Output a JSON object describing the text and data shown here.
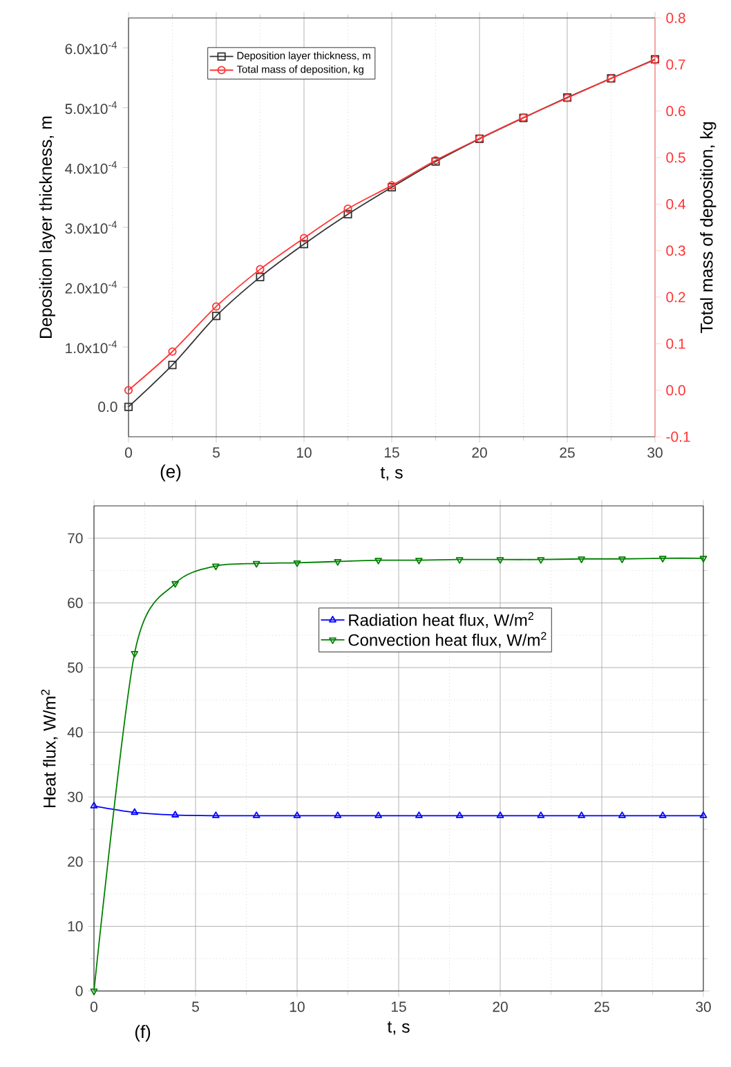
{
  "chart_data": [
    {
      "type": "line",
      "xlabel": "t, s",
      "ylabel": "Deposition layer thickness, m",
      "y2label": "Total mass of deposition, kg",
      "annotations": [
        "(e)"
      ],
      "x": [
        0,
        2.5,
        5,
        7.5,
        10,
        12.5,
        15,
        17.5,
        20,
        22.5,
        25,
        27.5,
        30
      ],
      "xlim": [
        0,
        30
      ],
      "xticks": [
        0,
        5,
        10,
        15,
        20,
        25,
        30
      ],
      "ylim": [
        -5e-05,
        0.00065
      ],
      "yticks": [
        {
          "value": 0,
          "label": "0.0"
        },
        {
          "value": 0.0001,
          "label": "1.0x10$^{-4}$"
        },
        {
          "value": 0.0002,
          "label": "2.0x10$^{-4}$"
        },
        {
          "value": 0.0003,
          "label": "3.0x10$^{-4}$"
        },
        {
          "value": 0.0004,
          "label": "4.0x10$^{-4}$"
        },
        {
          "value": 0.0005,
          "label": "5.0x10$^{-4}$"
        },
        {
          "value": 0.0006,
          "label": "6.0x10$^{-4}$"
        }
      ],
      "y2lim": [
        -0.1,
        0.8
      ],
      "y2ticks": [
        -0.1,
        {
          "value": 0,
          "label": "0.0"
        },
        0.1,
        0.2,
        0.3,
        0.4,
        0.5,
        0.6,
        0.7,
        0.8
      ],
      "grid": "x",
      "legend": "top left",
      "series": [
        {
          "name": "Deposition layer thickness, m",
          "color": "#333333",
          "marker": "square",
          "values": [
            0,
            7e-05,
            0.000152,
            0.000217,
            0.000272,
            0.000322,
            0.000367,
            0.00041,
            0.000448,
            0.000483,
            0.000517,
            0.000549,
            0.000581
          ]
        },
        {
          "name": "Total mass of deposition, kg",
          "color": "#ff3333",
          "marker": "circle",
          "axis": "y2",
          "values": [
            0.0,
            0.083,
            0.18,
            0.26,
            0.327,
            0.39,
            0.44,
            0.494,
            0.541,
            0.586,
            0.628,
            0.67,
            0.71
          ]
        }
      ]
    },
    {
      "type": "line",
      "xlabel": "t, s",
      "ylabel": "Heat flux, W/m$^{2}$",
      "annotations": [
        "(f)"
      ],
      "x": [
        0,
        2,
        4,
        6,
        8,
        10,
        12,
        14,
        16,
        18,
        20,
        22,
        24,
        26,
        28,
        30
      ],
      "xlim": [
        0,
        30
      ],
      "xticks": [
        0,
        5,
        10,
        15,
        20,
        25,
        30
      ],
      "ylim": [
        0,
        75
      ],
      "yticks": [
        0,
        10,
        20,
        30,
        40,
        50,
        60,
        70
      ],
      "grid": true,
      "legend": "top",
      "series": [
        {
          "name": "Radiation heat flux, W/m$^{2}$",
          "color": "#0000ff",
          "marker": "triangle",
          "values": [
            28.6,
            27.6,
            27.2,
            27.1,
            27.1,
            27.1,
            27.1,
            27.1,
            27.1,
            27.1,
            27.1,
            27.1,
            27.1,
            27.1,
            27.1,
            27.1
          ]
        },
        {
          "name": "Convection heat flux, W/m$^{2}$",
          "color": "#008000",
          "marker": "triangle-down",
          "values": [
            0,
            52.2,
            63.0,
            65.7,
            66.1,
            66.2,
            66.4,
            66.6,
            66.6,
            66.7,
            66.7,
            66.7,
            66.8,
            66.8,
            66.9,
            66.9
          ]
        }
      ]
    }
  ]
}
